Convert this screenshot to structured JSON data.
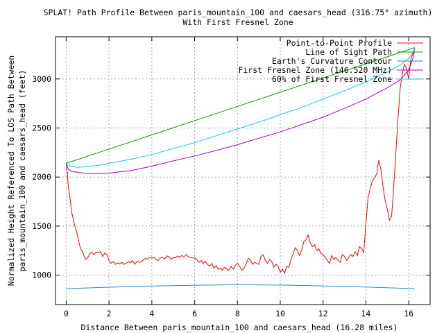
{
  "chart_data": {
    "type": "line",
    "title_lines": [
      "SPLAT! Path Profile Between paris_mountain_100 and caesars_head (316.75° azimuth)",
      "With First Fresnel Zone"
    ],
    "xlabel": "Distance Between paris_mountain_100 and caesars_head (16.28 miles)",
    "ylabel_lines": [
      "Normalized Height Referenced To LOS Path Between",
      "paris_mountain_100 and caesars_head (feet)"
    ],
    "xlim": [
      -0.5,
      17.0
    ],
    "ylim": [
      700,
      3430
    ],
    "x_ticks": [
      0,
      2,
      4,
      6,
      8,
      10,
      12,
      14,
      16
    ],
    "y_ticks": [
      1000,
      1500,
      2000,
      2500,
      3000
    ],
    "grid": true,
    "legend_position": "top-right",
    "series": [
      {
        "name": "Point-to-Point Profile",
        "color": "#ff0000",
        "x": [
          0,
          0.05,
          0.1,
          0.18,
          0.25,
          0.32,
          0.4,
          0.48,
          0.55,
          0.62,
          0.7,
          0.78,
          0.85,
          0.92,
          1.0,
          1.1,
          1.2,
          1.3,
          1.4,
          1.5,
          1.6,
          1.7,
          1.8,
          1.9,
          2.0,
          2.1,
          2.2,
          2.3,
          2.4,
          2.5,
          2.6,
          2.7,
          2.8,
          2.9,
          3.0,
          3.1,
          3.2,
          3.3,
          3.4,
          3.5,
          3.6,
          3.7,
          3.8,
          3.9,
          4.0,
          4.1,
          4.2,
          4.3,
          4.4,
          4.5,
          4.6,
          4.7,
          4.8,
          4.9,
          5.0,
          5.1,
          5.2,
          5.3,
          5.4,
          5.5,
          5.6,
          5.7,
          5.8,
          5.9,
          6.0,
          6.1,
          6.2,
          6.3,
          6.4,
          6.5,
          6.6,
          6.7,
          6.8,
          6.9,
          7.0,
          7.1,
          7.2,
          7.3,
          7.4,
          7.5,
          7.6,
          7.7,
          7.8,
          7.9,
          8.0,
          8.1,
          8.2,
          8.3,
          8.4,
          8.5,
          8.6,
          8.7,
          8.8,
          8.9,
          9.0,
          9.1,
          9.2,
          9.3,
          9.4,
          9.5,
          9.6,
          9.7,
          9.8,
          9.9,
          10.0,
          10.1,
          10.2,
          10.3,
          10.4,
          10.5,
          10.6,
          10.7,
          10.8,
          10.9,
          11.0,
          11.1,
          11.2,
          11.3,
          11.4,
          11.5,
          11.6,
          11.7,
          11.8,
          11.9,
          12.0,
          12.1,
          12.2,
          12.3,
          12.4,
          12.5,
          12.6,
          12.7,
          12.8,
          12.9,
          13.0,
          13.1,
          13.2,
          13.3,
          13.4,
          13.5,
          13.6,
          13.7,
          13.8,
          13.9,
          14.0,
          14.1,
          14.2,
          14.3,
          14.4,
          14.5,
          14.55,
          14.6,
          14.7,
          14.8,
          14.9,
          15.0,
          15.1,
          15.2,
          15.3,
          15.4,
          15.5,
          15.6,
          15.7,
          15.8,
          15.9,
          16.0,
          16.1,
          16.2,
          16.28
        ],
        "y": [
          2120,
          2050,
          1900,
          1780,
          1650,
          1580,
          1500,
          1450,
          1380,
          1310,
          1260,
          1230,
          1180,
          1160,
          1175,
          1220,
          1235,
          1210,
          1235,
          1230,
          1240,
          1190,
          1225,
          1210,
          1150,
          1120,
          1140,
          1110,
          1125,
          1115,
          1130,
          1110,
          1120,
          1135,
          1125,
          1150,
          1110,
          1140,
          1130,
          1135,
          1155,
          1170,
          1165,
          1180,
          1175,
          1180,
          1160,
          1150,
          1175,
          1180,
          1165,
          1195,
          1190,
          1160,
          1180,
          1175,
          1195,
          1185,
          1200,
          1185,
          1210,
          1190,
          1180,
          1175,
          1175,
          1160,
          1130,
          1150,
          1120,
          1140,
          1110,
          1090,
          1120,
          1070,
          1100,
          1060,
          1070,
          1050,
          1080,
          1060,
          1050,
          1090,
          1060,
          1100,
          1120,
          1090,
          1050,
          1070,
          1110,
          1170,
          1160,
          1110,
          1130,
          1120,
          1110,
          1190,
          1210,
          1150,
          1120,
          1160,
          1140,
          1080,
          1110,
          1090,
          1030,
          1060,
          1020,
          1090,
          1080,
          1160,
          1220,
          1280,
          1250,
          1200,
          1260,
          1340,
          1360,
          1410,
          1330,
          1290,
          1310,
          1250,
          1270,
          1220,
          1210,
          1180,
          1150,
          1120,
          1200,
          1160,
          1180,
          1150,
          1130,
          1210,
          1190,
          1150,
          1180,
          1210,
          1190,
          1240,
          1200,
          1290,
          1270,
          1230,
          1520,
          1790,
          1880,
          1960,
          1990,
          2030,
          2100,
          2170,
          2080,
          1900,
          1760,
          1670,
          1560,
          1600,
          1900,
          2250,
          2600,
          2900,
          3050,
          3150,
          3100,
          3000,
          3200,
          3260,
          3270
        ]
      },
      {
        "name": "Line of Sight Path",
        "color": "#00a000",
        "x": [
          0,
          16.28
        ],
        "y": [
          2140,
          3320
        ]
      },
      {
        "name": "Earth's Curvature Contour",
        "color": "#1e8cc8",
        "x": [
          0,
          2,
          4,
          6,
          8,
          10,
          12,
          14,
          16.28
        ],
        "y": [
          862,
          877,
          889,
          897,
          902,
          899,
          890,
          878,
          862
        ]
      },
      {
        "name": "First Fresnel Zone (146.520 MHz)",
        "color": "#a000c8",
        "x": [
          0,
          0.1,
          0.3,
          0.6,
          1.0,
          1.5,
          2.0,
          3.0,
          4.0,
          5.0,
          6.0,
          7.0,
          8.0,
          9.0,
          10.0,
          11.0,
          12.0,
          13.0,
          14.0,
          15.0,
          15.6,
          16.0,
          16.2,
          16.28
        ],
        "y": [
          2140,
          2080,
          2055,
          2045,
          2035,
          2035,
          2040,
          2065,
          2110,
          2165,
          2215,
          2270,
          2330,
          2395,
          2460,
          2535,
          2610,
          2700,
          2795,
          2910,
          2990,
          3090,
          3210,
          3320
        ]
      },
      {
        "name": "60% of First Fresnel Zone",
        "color": "#00d2dc",
        "x": [
          0,
          0.2,
          0.5,
          1.0,
          1.5,
          2.0,
          3.0,
          4.0,
          5.0,
          6.0,
          7.0,
          8.0,
          9.0,
          10.0,
          11.0,
          12.0,
          13.0,
          14.0,
          15.0,
          15.6,
          16.0,
          16.2,
          16.28
        ],
        "y": [
          2140,
          2110,
          2100,
          2105,
          2120,
          2140,
          2180,
          2230,
          2290,
          2350,
          2420,
          2490,
          2560,
          2635,
          2710,
          2795,
          2880,
          2970,
          3070,
          3140,
          3210,
          3270,
          3320
        ]
      }
    ]
  }
}
